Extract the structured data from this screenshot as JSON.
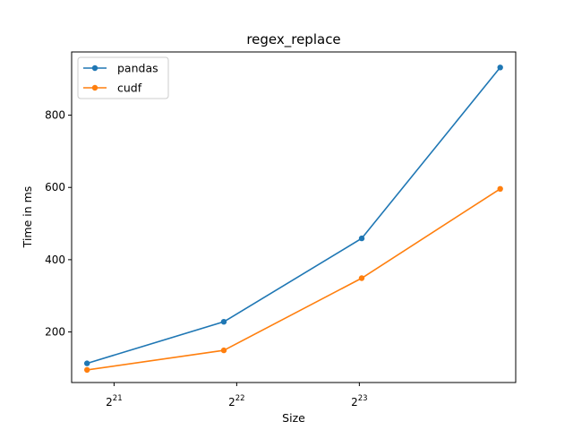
{
  "chart_data": {
    "type": "line",
    "title": "regex_replace",
    "xlabel": "Size",
    "ylabel": "Time in ms",
    "x_scale": "log2",
    "x": [
      1800000,
      3900000,
      8500000,
      18600000
    ],
    "xlim": [
      1650000,
      20300000
    ],
    "xticks": [
      {
        "value": 2097152,
        "base": "2",
        "exp": "21"
      },
      {
        "value": 4194304,
        "base": "2",
        "exp": "22"
      },
      {
        "value": 8388608,
        "base": "2",
        "exp": "23"
      }
    ],
    "ylim": [
      60,
      975
    ],
    "yticks": [
      200,
      400,
      600,
      800
    ],
    "grid": false,
    "legend_position": "top-left",
    "series": [
      {
        "name": "pandas",
        "color": "#1f77b4",
        "values": [
          113,
          228,
          459,
          932
        ]
      },
      {
        "name": "cudf",
        "color": "#ff7f0e",
        "values": [
          95,
          149,
          349,
          596
        ]
      }
    ]
  }
}
